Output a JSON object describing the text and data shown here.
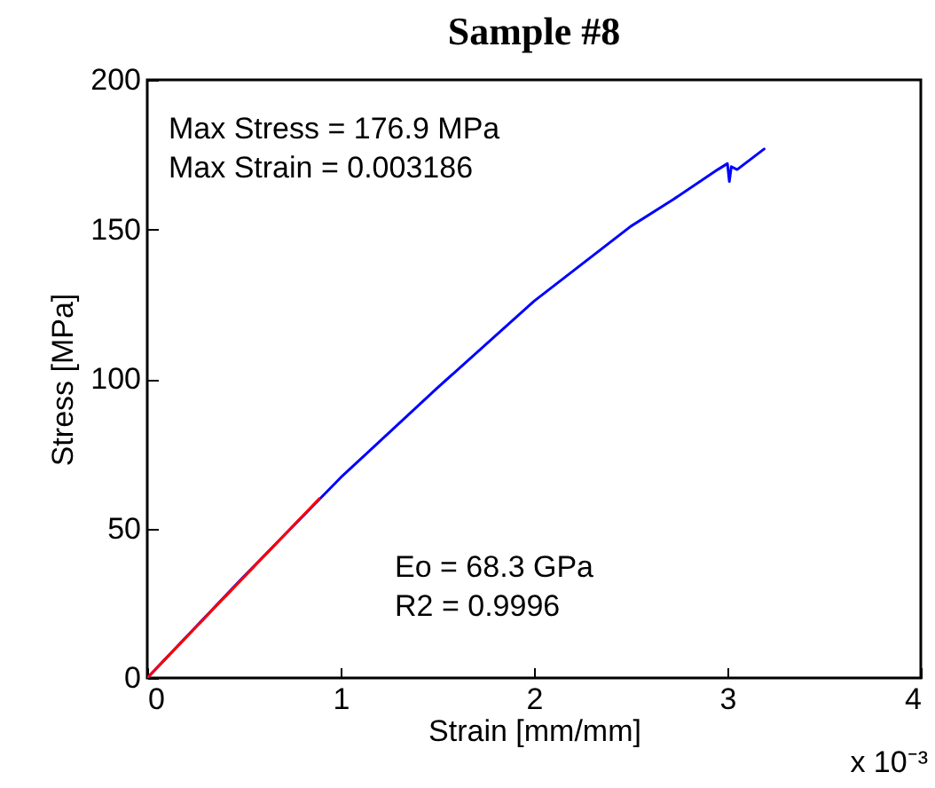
{
  "chart_data": {
    "type": "line",
    "title": "Sample #8",
    "xlabel": "Strain [mm/mm]",
    "ylabel": "Stress [MPa]",
    "xlim": [
      0,
      4
    ],
    "xticks": [
      0,
      1,
      2,
      3,
      4
    ],
    "ylim": [
      0,
      200
    ],
    "yticks": [
      0,
      50,
      100,
      150,
      200
    ],
    "grid": false,
    "line_style": "solid",
    "series": [
      {
        "color": "#0000ff",
        "x": [
          0,
          0.5,
          1,
          1.5,
          2,
          2.5,
          2.72,
          2.95,
          3.0,
          3.01,
          3.02,
          3.05,
          3.19
        ],
        "values": [
          0,
          34,
          67,
          97,
          126,
          151,
          160,
          170,
          172,
          166,
          171,
          170,
          176.9
        ]
      },
      {
        "color": "#ff0000",
        "x": [
          0,
          0.89
        ],
        "values": [
          0,
          60
        ]
      }
    ],
    "annotations": [
      "Max Stress = 176.9 MPa\nMax Strain = 0.003186",
      "Eo = 68.3 GPa\nR2 = 0.9996",
      "x 10⁻³"
    ]
  }
}
